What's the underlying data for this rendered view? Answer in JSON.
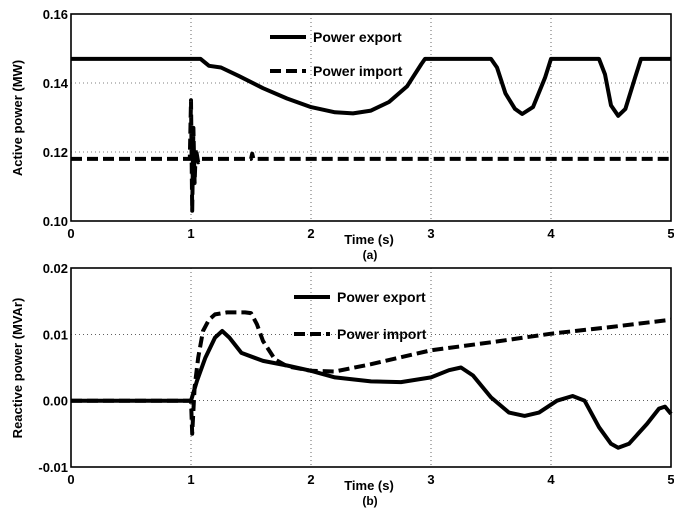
{
  "chart_data": [
    {
      "type": "line",
      "caption": "(a)",
      "xlabel": "Time (s)",
      "ylabel": "Active power (MW)",
      "xlim": [
        0,
        5
      ],
      "ylim": [
        0.1,
        0.16
      ],
      "xticks": [
        0,
        1,
        2,
        3,
        4,
        5
      ],
      "yticks": [
        0.1,
        0.12,
        0.14,
        0.16
      ],
      "xtick_labels": [
        "0",
        "1",
        "2",
        "3",
        "4",
        "5"
      ],
      "ytick_labels": [
        "0.10",
        "0.12",
        "0.14",
        "0.16"
      ],
      "grid": true,
      "legend_position": "top-center",
      "legend": [
        "Power export",
        "Power import"
      ],
      "series": [
        {
          "name": "Power export",
          "style": "solid",
          "x": [
            0,
            0.5,
            1.0,
            1.08,
            1.15,
            1.25,
            1.4,
            1.6,
            1.8,
            2.0,
            2.2,
            2.35,
            2.5,
            2.65,
            2.8,
            2.92,
            2.95,
            3.0,
            3.5,
            3.55,
            3.62,
            3.7,
            3.76,
            3.85,
            3.95,
            4.0,
            4.4,
            4.45,
            4.5,
            4.56,
            4.62,
            4.7,
            4.75,
            5.0
          ],
          "y": [
            0.147,
            0.147,
            0.147,
            0.147,
            0.145,
            0.1445,
            0.142,
            0.1385,
            0.1355,
            0.133,
            0.1315,
            0.1312,
            0.132,
            0.1345,
            0.139,
            0.1455,
            0.147,
            0.147,
            0.147,
            0.1445,
            0.137,
            0.1325,
            0.131,
            0.133,
            0.1415,
            0.147,
            0.147,
            0.1425,
            0.1335,
            0.1305,
            0.1325,
            0.1415,
            0.147,
            0.147
          ]
        },
        {
          "name": "Power import",
          "style": "dashed",
          "x": [
            0,
            0.99,
            1.0,
            1.01,
            1.02,
            1.03,
            1.04,
            1.06,
            1.08,
            1.5,
            1.51,
            1.52,
            5.0
          ],
          "y": [
            0.118,
            0.118,
            0.135,
            0.103,
            0.127,
            0.111,
            0.121,
            0.117,
            0.118,
            0.118,
            0.1195,
            0.118,
            0.118
          ]
        }
      ]
    },
    {
      "type": "line",
      "caption": "(b)",
      "xlabel": "Time (s)",
      "ylabel": "Reactive power (MVAr)",
      "xlim": [
        0,
        5
      ],
      "ylim": [
        -0.01,
        0.02
      ],
      "xticks": [
        0,
        1,
        2,
        3,
        4,
        5
      ],
      "yticks": [
        -0.01,
        0.0,
        0.01,
        0.02
      ],
      "xtick_labels": [
        "0",
        "1",
        "2",
        "3",
        "4",
        "5"
      ],
      "ytick_labels": [
        "-0.01",
        "0.00",
        "0.01",
        "0.02"
      ],
      "grid": true,
      "legend_position": "top-center",
      "legend": [
        "Power export",
        "Power import"
      ],
      "series": [
        {
          "name": "Power export",
          "style": "solid",
          "x": [
            0,
            0.99,
            1.0,
            1.05,
            1.12,
            1.2,
            1.26,
            1.32,
            1.42,
            1.6,
            1.8,
            2.0,
            2.2,
            2.5,
            2.75,
            3.0,
            3.15,
            3.25,
            3.35,
            3.5,
            3.65,
            3.78,
            3.9,
            4.05,
            4.18,
            4.28,
            4.4,
            4.5,
            4.56,
            4.65,
            4.8,
            4.9,
            4.95,
            5.0
          ],
          "y": [
            0.0,
            0.0,
            0.0,
            0.003,
            0.0065,
            0.0095,
            0.0105,
            0.0095,
            0.0072,
            0.006,
            0.0053,
            0.0045,
            0.0035,
            0.0029,
            0.0028,
            0.0035,
            0.0046,
            0.005,
            0.0038,
            0.0005,
            -0.0018,
            -0.0023,
            -0.0018,
            0.0,
            0.0007,
            0.0,
            -0.004,
            -0.0065,
            -0.0071,
            -0.0065,
            -0.0035,
            -0.0012,
            -0.0009,
            -0.002
          ]
        },
        {
          "name": "Power import",
          "style": "dashed",
          "x": [
            0,
            0.99,
            1.0,
            1.01,
            1.03,
            1.06,
            1.1,
            1.15,
            1.2,
            1.3,
            1.45,
            1.5,
            1.55,
            1.6,
            1.7,
            1.8,
            2.0,
            2.2,
            2.5,
            3.0,
            3.5,
            4.0,
            4.5,
            5.0
          ],
          "y": [
            0.0,
            0.0,
            0.0,
            -0.005,
            0.002,
            0.0065,
            0.0105,
            0.0122,
            0.013,
            0.0133,
            0.0133,
            0.0132,
            0.0115,
            0.009,
            0.0062,
            0.0052,
            0.0045,
            0.0044,
            0.0055,
            0.0076,
            0.0088,
            0.0101,
            0.0111,
            0.0122
          ]
        }
      ]
    }
  ]
}
